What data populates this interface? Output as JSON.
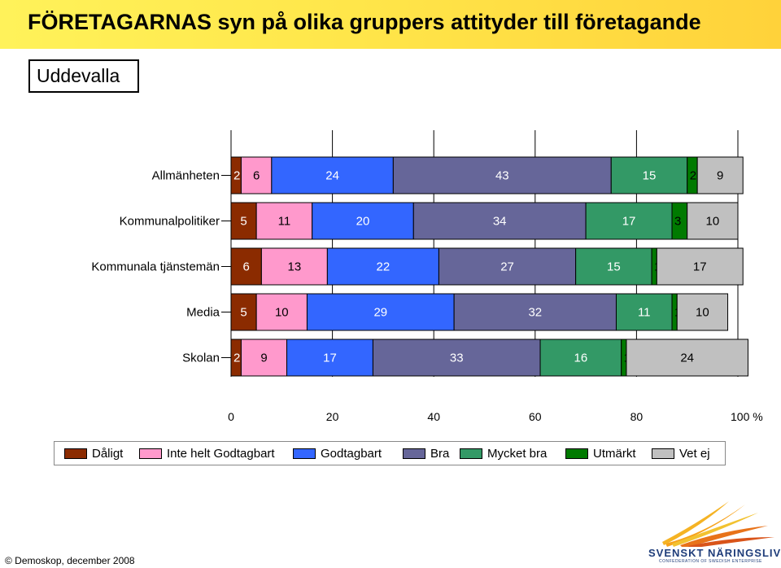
{
  "header": {
    "title": "FÖRETAGARNAS syn på olika gruppers attityder till företagande",
    "subtitle": "Uddevalla"
  },
  "footer": {
    "text": "© Demoskop, december 2008"
  },
  "logo": {
    "name": "SVENSKT NÄRINGSLIV",
    "tagline": "CONFEDERATION OF SWEDISH ENTERPRISE"
  },
  "colors": {
    "band": "#ffe64a",
    "Dåligt": "#8b2b00",
    "Inte helt Godtagbart": "#ff99cc",
    "Godtagbart": "#3366ff",
    "Bra": "#666699",
    "Mycket bra": "#339966",
    "Utmärkt": "#007a00",
    "Vet ej": "#c0c0c0"
  },
  "chart_data": {
    "type": "bar",
    "orientation": "horizontal-stacked-100",
    "categories": [
      "Allmänheten",
      "Kommunalpolitiker",
      "Kommunala tjänstemän",
      "Media",
      "Skolan"
    ],
    "series": [
      {
        "name": "Dåligt",
        "values": [
          2,
          5,
          6,
          5,
          2
        ]
      },
      {
        "name": "Inte helt Godtagbart",
        "values": [
          6,
          11,
          13,
          10,
          9
        ]
      },
      {
        "name": "Godtagbart",
        "values": [
          24,
          20,
          22,
          29,
          17
        ]
      },
      {
        "name": "Bra",
        "values": [
          43,
          34,
          27,
          32,
          33
        ]
      },
      {
        "name": "Mycket bra",
        "values": [
          15,
          17,
          15,
          11,
          16
        ]
      },
      {
        "name": "Utmärkt",
        "values": [
          2,
          3,
          1,
          1,
          1
        ]
      },
      {
        "name": "Vet ej",
        "values": [
          9,
          10,
          17,
          10,
          24
        ]
      }
    ],
    "xlim": [
      0,
      100
    ],
    "xticks": [
      "0",
      "20",
      "40",
      "60",
      "80",
      "100 %"
    ],
    "legend_position": "bottom",
    "grid": "vertical"
  }
}
